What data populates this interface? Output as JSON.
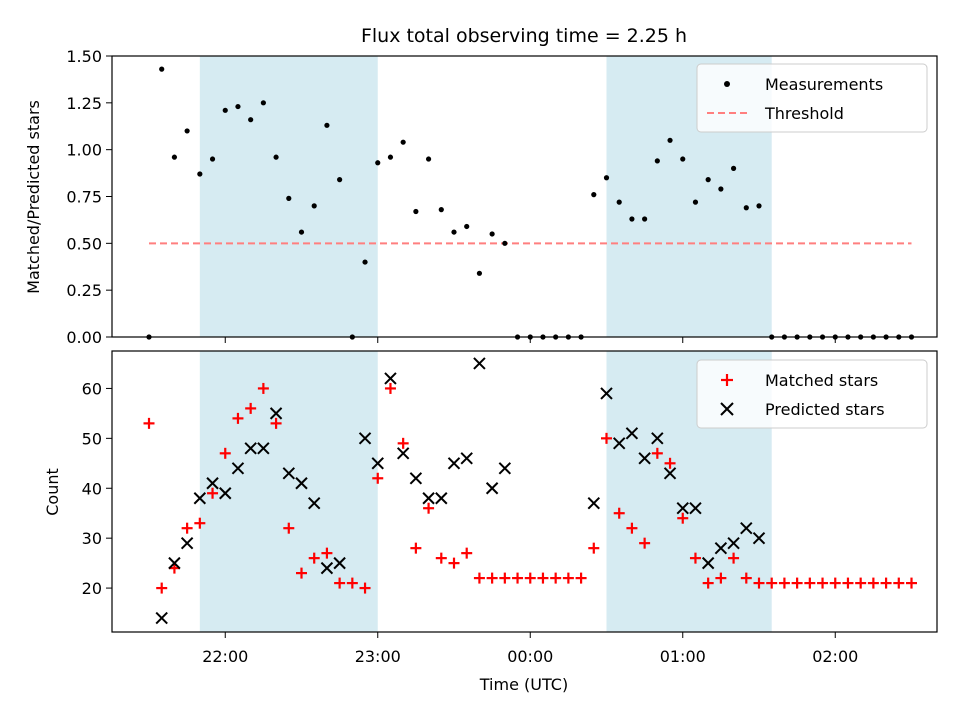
{
  "chart_data": [
    {
      "type": "scatter",
      "title": "Flux total observing time = 2.25 h",
      "xlabel": "",
      "ylabel": "Matched/Predicted stars",
      "ylim": [
        0,
        1.5
      ],
      "yticks": [
        "0.00",
        "0.25",
        "0.50",
        "0.75",
        "1.00",
        "1.25",
        "1.50"
      ],
      "legend_position": "top-right",
      "shaded_intervals": [
        [
          "21:50",
          "23:00"
        ],
        [
          "00:30",
          "01:35"
        ]
      ],
      "threshold": {
        "name": "Threshold",
        "y": 0.5,
        "x_range": [
          "21:30",
          "02:30"
        ],
        "color": "#ff7f7f"
      },
      "series": [
        {
          "name": "Measurements",
          "color": "#000000",
          "points": [
            [
              "21:30",
              0.0
            ],
            [
              "21:35",
              1.43
            ],
            [
              "21:40",
              0.96
            ],
            [
              "21:45",
              1.1
            ],
            [
              "21:50",
              0.87
            ],
            [
              "21:55",
              0.95
            ],
            [
              "22:00",
              1.21
            ],
            [
              "22:05",
              1.23
            ],
            [
              "22:10",
              1.16
            ],
            [
              "22:15",
              1.25
            ],
            [
              "22:20",
              0.96
            ],
            [
              "22:25",
              0.74
            ],
            [
              "22:30",
              0.56
            ],
            [
              "22:35",
              0.7
            ],
            [
              "22:40",
              1.13
            ],
            [
              "22:45",
              0.84
            ],
            [
              "22:50",
              0.0
            ],
            [
              "22:55",
              0.4
            ],
            [
              "23:00",
              0.93
            ],
            [
              "23:05",
              0.96
            ],
            [
              "23:10",
              1.04
            ],
            [
              "23:15",
              0.67
            ],
            [
              "23:20",
              0.95
            ],
            [
              "23:25",
              0.68
            ],
            [
              "23:30",
              0.56
            ],
            [
              "23:35",
              0.59
            ],
            [
              "23:40",
              0.34
            ],
            [
              "23:45",
              0.55
            ],
            [
              "23:50",
              0.5
            ],
            [
              "23:55",
              0.0
            ],
            [
              "00:00",
              0.0
            ],
            [
              "00:05",
              0.0
            ],
            [
              "00:10",
              0.0
            ],
            [
              "00:15",
              0.0
            ],
            [
              "00:20",
              0.0
            ],
            [
              "00:25",
              0.76
            ],
            [
              "00:30",
              0.85
            ],
            [
              "00:35",
              0.72
            ],
            [
              "00:40",
              0.63
            ],
            [
              "00:45",
              0.63
            ],
            [
              "00:50",
              0.94
            ],
            [
              "00:55",
              1.05
            ],
            [
              "01:00",
              0.95
            ],
            [
              "01:05",
              0.72
            ],
            [
              "01:10",
              0.84
            ],
            [
              "01:15",
              0.79
            ],
            [
              "01:20",
              0.9
            ],
            [
              "01:25",
              0.69
            ],
            [
              "01:30",
              0.7
            ],
            [
              "01:35",
              0.0
            ],
            [
              "01:40",
              0.0
            ],
            [
              "01:45",
              0.0
            ],
            [
              "01:50",
              0.0
            ],
            [
              "01:55",
              0.0
            ],
            [
              "02:00",
              0.0
            ],
            [
              "02:05",
              0.0
            ],
            [
              "02:10",
              0.0
            ],
            [
              "02:15",
              0.0
            ],
            [
              "02:20",
              0.0
            ],
            [
              "02:25",
              0.0
            ],
            [
              "02:30",
              0.0
            ]
          ]
        }
      ]
    },
    {
      "type": "scatter",
      "title": "",
      "xlabel": "Time (UTC)",
      "ylabel": "Count",
      "ylim": [
        11.2,
        67.5
      ],
      "yticks": [
        "20",
        "30",
        "40",
        "50",
        "60"
      ],
      "xticks": [
        "22:00",
        "23:00",
        "00:00",
        "01:00",
        "02:00"
      ],
      "legend_position": "top-right",
      "series": [
        {
          "name": "Matched stars",
          "marker": "plus",
          "color": "#ff0000",
          "points": [
            [
              "21:30",
              53
            ],
            [
              "21:35",
              20
            ],
            [
              "21:40",
              24
            ],
            [
              "21:45",
              32
            ],
            [
              "21:50",
              33
            ],
            [
              "21:55",
              39
            ],
            [
              "22:00",
              47
            ],
            [
              "22:05",
              54
            ],
            [
              "22:10",
              56
            ],
            [
              "22:15",
              60
            ],
            [
              "22:20",
              53
            ],
            [
              "22:25",
              32
            ],
            [
              "22:30",
              23
            ],
            [
              "22:35",
              26
            ],
            [
              "22:40",
              27
            ],
            [
              "22:45",
              21
            ],
            [
              "22:50",
              21
            ],
            [
              "22:55",
              20
            ],
            [
              "23:00",
              42
            ],
            [
              "23:05",
              60
            ],
            [
              "23:10",
              49
            ],
            [
              "23:15",
              28
            ],
            [
              "23:20",
              36
            ],
            [
              "23:25",
              26
            ],
            [
              "23:30",
              25
            ],
            [
              "23:35",
              27
            ],
            [
              "23:40",
              22
            ],
            [
              "23:45",
              22
            ],
            [
              "23:50",
              22
            ],
            [
              "23:55",
              22
            ],
            [
              "00:00",
              22
            ],
            [
              "00:05",
              22
            ],
            [
              "00:10",
              22
            ],
            [
              "00:15",
              22
            ],
            [
              "00:20",
              22
            ],
            [
              "00:25",
              28
            ],
            [
              "00:30",
              50
            ],
            [
              "00:35",
              35
            ],
            [
              "00:40",
              32
            ],
            [
              "00:45",
              29
            ],
            [
              "00:50",
              47
            ],
            [
              "00:55",
              45
            ],
            [
              "01:00",
              34
            ],
            [
              "01:05",
              26
            ],
            [
              "01:10",
              21
            ],
            [
              "01:15",
              22
            ],
            [
              "01:20",
              26
            ],
            [
              "01:25",
              22
            ],
            [
              "01:30",
              21
            ],
            [
              "01:35",
              21
            ],
            [
              "01:40",
              21
            ],
            [
              "01:45",
              21
            ],
            [
              "01:50",
              21
            ],
            [
              "01:55",
              21
            ],
            [
              "02:00",
              21
            ],
            [
              "02:05",
              21
            ],
            [
              "02:10",
              21
            ],
            [
              "02:15",
              21
            ],
            [
              "02:20",
              21
            ],
            [
              "02:25",
              21
            ],
            [
              "02:30",
              21
            ]
          ]
        },
        {
          "name": "Predicted stars",
          "marker": "x",
          "color": "#000000",
          "points": [
            [
              "21:35",
              14
            ],
            [
              "21:40",
              25
            ],
            [
              "21:45",
              29
            ],
            [
              "21:50",
              38
            ],
            [
              "21:55",
              41
            ],
            [
              "22:00",
              39
            ],
            [
              "22:05",
              44
            ],
            [
              "22:10",
              48
            ],
            [
              "22:15",
              48
            ],
            [
              "22:20",
              55
            ],
            [
              "22:25",
              43
            ],
            [
              "22:30",
              41
            ],
            [
              "22:35",
              37
            ],
            [
              "22:40",
              24
            ],
            [
              "22:45",
              25
            ],
            [
              "22:55",
              50
            ],
            [
              "23:00",
              45
            ],
            [
              "23:05",
              62
            ],
            [
              "23:10",
              47
            ],
            [
              "23:15",
              42
            ],
            [
              "23:20",
              38
            ],
            [
              "23:25",
              38
            ],
            [
              "23:30",
              45
            ],
            [
              "23:35",
              46
            ],
            [
              "23:40",
              65
            ],
            [
              "23:45",
              40
            ],
            [
              "23:50",
              44
            ],
            [
              "00:25",
              37
            ],
            [
              "00:30",
              59
            ],
            [
              "00:35",
              49
            ],
            [
              "00:40",
              51
            ],
            [
              "00:45",
              46
            ],
            [
              "00:50",
              50
            ],
            [
              "00:55",
              43
            ],
            [
              "01:00",
              36
            ],
            [
              "01:05",
              36
            ],
            [
              "01:10",
              25
            ],
            [
              "01:15",
              28
            ],
            [
              "01:20",
              29
            ],
            [
              "01:25",
              32
            ],
            [
              "01:30",
              30
            ]
          ]
        }
      ]
    }
  ]
}
